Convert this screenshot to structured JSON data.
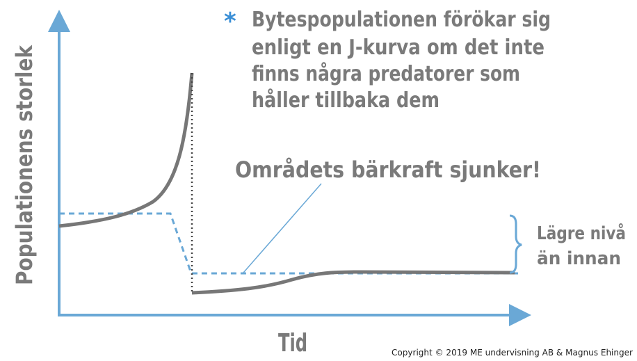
{
  "y_axis_label": "Populationens storlek",
  "x_axis_label": "Tid",
  "note": {
    "marker": "*",
    "lines": [
      "Bytespopulationen förökar sig",
      "enligt en J-kurva om det inte",
      "finns några predatorer som",
      "håller tillbaka dem"
    ]
  },
  "annotation": "Områdets bärkraft sjunker!",
  "bracket_label": [
    "Lägre nivå",
    "än innan"
  ],
  "copyright": "Copyright © 2019 ME undervisning AB & Magnus Ehinger"
}
